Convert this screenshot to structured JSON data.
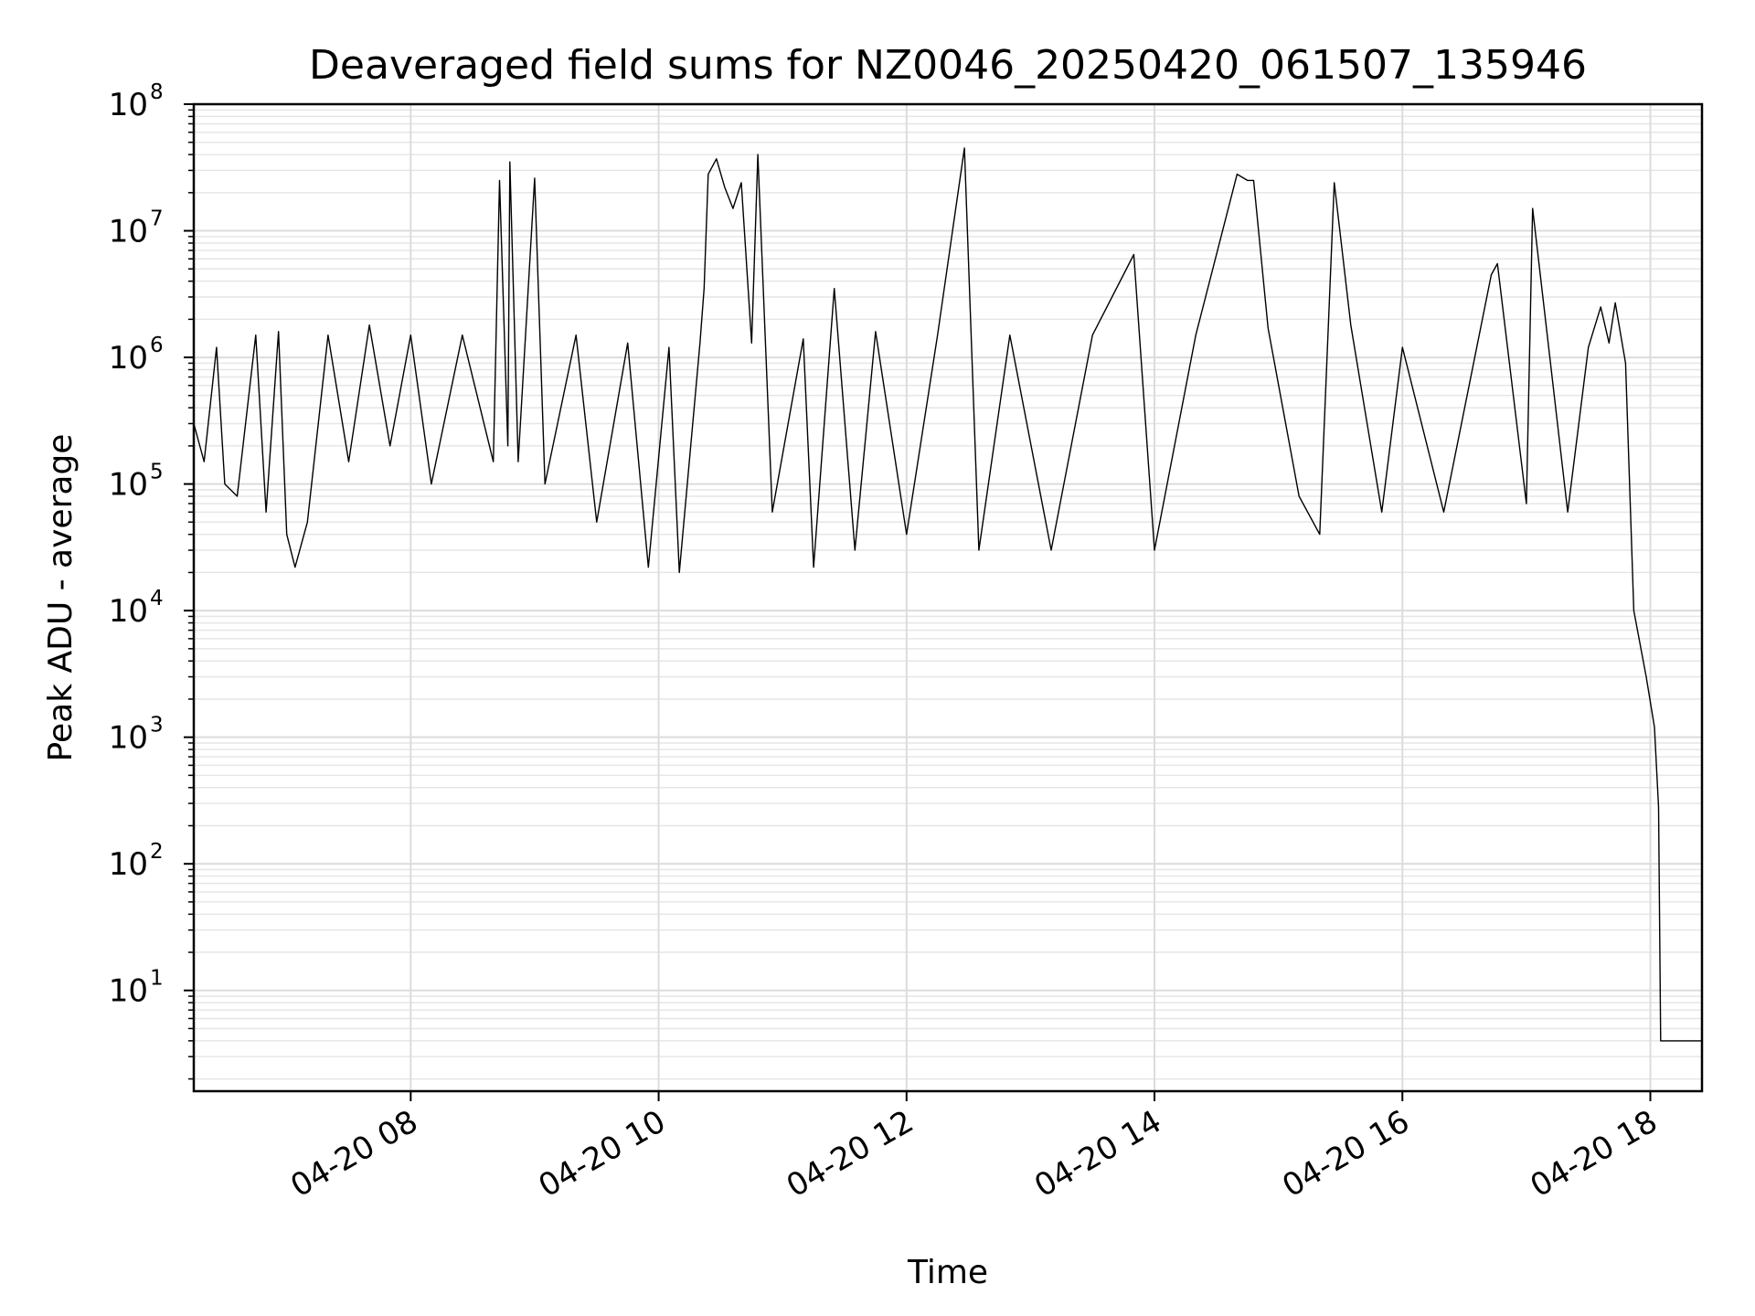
{
  "chart_data": {
    "type": "line",
    "title": "Deaveraged field sums for NZ0046_20250420_061507_135946",
    "xlabel": "Time",
    "ylabel": "Peak ADU - average",
    "yscale": "log",
    "xlim": [
      "2025-04-20 06:15",
      "2025-04-20 18:25"
    ],
    "ylim": [
      1.6,
      100000000
    ],
    "grid": "major and minor, light gray",
    "x_ticks": [
      {
        "value": "2025-04-20 08:00",
        "label": "04-20 08"
      },
      {
        "value": "2025-04-20 10:00",
        "label": "04-20 10"
      },
      {
        "value": "2025-04-20 12:00",
        "label": "04-20 12"
      },
      {
        "value": "2025-04-20 14:00",
        "label": "04-20 14"
      },
      {
        "value": "2025-04-20 16:00",
        "label": "04-20 16"
      },
      {
        "value": "2025-04-20 18:00",
        "label": "04-20 18"
      }
    ],
    "y_ticks": [
      {
        "value": 10,
        "base": "10",
        "exp": "1"
      },
      {
        "value": 100,
        "base": "10",
        "exp": "2"
      },
      {
        "value": 1000,
        "base": "10",
        "exp": "3"
      },
      {
        "value": 10000,
        "base": "10",
        "exp": "4"
      },
      {
        "value": 100000,
        "base": "10",
        "exp": "5"
      },
      {
        "value": 1000000,
        "base": "10",
        "exp": "6"
      },
      {
        "value": 10000000,
        "base": "10",
        "exp": "7"
      },
      {
        "value": 100000000,
        "base": "10",
        "exp": "8"
      }
    ],
    "series": [
      {
        "color": "#000000",
        "values_description_only_for_shape": "",
        "points": [
          [
            "2025-04-20 06:15",
            300000
          ],
          [
            "2025-04-20 06:20",
            150000
          ],
          [
            "2025-04-20 06:26",
            1200000
          ],
          [
            "2025-04-20 06:30",
            100000
          ],
          [
            "2025-04-20 06:36",
            80000
          ],
          [
            "2025-04-20 06:45",
            1500000
          ],
          [
            "2025-04-20 06:50",
            60000
          ],
          [
            "2025-04-20 06:56",
            1600000
          ],
          [
            "2025-04-20 07:00",
            40000
          ],
          [
            "2025-04-20 07:04",
            22000
          ],
          [
            "2025-04-20 07:10",
            50000
          ],
          [
            "2025-04-20 07:20",
            1500000
          ],
          [
            "2025-04-20 07:30",
            150000
          ],
          [
            "2025-04-20 07:40",
            1800000
          ],
          [
            "2025-04-20 07:50",
            200000
          ],
          [
            "2025-04-20 08:00",
            1500000
          ],
          [
            "2025-04-20 08:10",
            100000
          ],
          [
            "2025-04-20 08:25",
            1500000
          ],
          [
            "2025-04-20 08:40",
            150000
          ],
          [
            "2025-04-20 08:43",
            25000000
          ],
          [
            "2025-04-20 08:47",
            200000
          ],
          [
            "2025-04-20 08:48",
            35000000
          ],
          [
            "2025-04-20 08:52",
            150000
          ],
          [
            "2025-04-20 09:00",
            26000000
          ],
          [
            "2025-04-20 09:05",
            100000
          ],
          [
            "2025-04-20 09:20",
            1500000
          ],
          [
            "2025-04-20 09:30",
            50000
          ],
          [
            "2025-04-20 09:45",
            1300000
          ],
          [
            "2025-04-20 09:55",
            22000
          ],
          [
            "2025-04-20 10:05",
            1200000
          ],
          [
            "2025-04-20 10:10",
            20000
          ],
          [
            "2025-04-20 10:20",
            1300000
          ],
          [
            "2025-04-20 10:22",
            3500000
          ],
          [
            "2025-04-20 10:24",
            28000000
          ],
          [
            "2025-04-20 10:28",
            37000000
          ],
          [
            "2025-04-20 10:32",
            22000000
          ],
          [
            "2025-04-20 10:36",
            15000000
          ],
          [
            "2025-04-20 10:40",
            24000000
          ],
          [
            "2025-04-20 10:45",
            1300000
          ],
          [
            "2025-04-20 10:48",
            40000000
          ],
          [
            "2025-04-20 10:55",
            60000
          ],
          [
            "2025-04-20 11:10",
            1400000
          ],
          [
            "2025-04-20 11:15",
            22000
          ],
          [
            "2025-04-20 11:25",
            3500000
          ],
          [
            "2025-04-20 11:35",
            30000
          ],
          [
            "2025-04-20 11:45",
            1600000
          ],
          [
            "2025-04-20 12:00",
            40000
          ],
          [
            "2025-04-20 12:15",
            1500000
          ],
          [
            "2025-04-20 12:28",
            45000000
          ],
          [
            "2025-04-20 12:35",
            30000
          ],
          [
            "2025-04-20 12:50",
            1500000
          ],
          [
            "2025-04-20 13:10",
            30000
          ],
          [
            "2025-04-20 13:30",
            1500000
          ],
          [
            "2025-04-20 13:50",
            6500000
          ],
          [
            "2025-04-20 14:00",
            30000
          ],
          [
            "2025-04-20 14:20",
            1500000
          ],
          [
            "2025-04-20 14:40",
            28000000
          ],
          [
            "2025-04-20 14:45",
            25000000
          ],
          [
            "2025-04-20 14:48",
            25000000
          ],
          [
            "2025-04-20 14:55",
            1700000
          ],
          [
            "2025-04-20 15:10",
            80000
          ],
          [
            "2025-04-20 15:20",
            40000
          ],
          [
            "2025-04-20 15:27",
            24000000
          ],
          [
            "2025-04-20 15:35",
            1800000
          ],
          [
            "2025-04-20 15:50",
            60000
          ],
          [
            "2025-04-20 16:00",
            1200000
          ],
          [
            "2025-04-20 16:20",
            60000
          ],
          [
            "2025-04-20 16:43",
            4500000
          ],
          [
            "2025-04-20 16:46",
            5500000
          ],
          [
            "2025-04-20 17:00",
            70000
          ],
          [
            "2025-04-20 17:03",
            15000000
          ],
          [
            "2025-04-20 17:20",
            60000
          ],
          [
            "2025-04-20 17:30",
            1200000
          ],
          [
            "2025-04-20 17:36",
            2500000
          ],
          [
            "2025-04-20 17:40",
            1300000
          ],
          [
            "2025-04-20 17:43",
            2700000
          ],
          [
            "2025-04-20 17:48",
            900000
          ],
          [
            "2025-04-20 17:52",
            10000
          ],
          [
            "2025-04-20 17:58",
            3000
          ],
          [
            "2025-04-20 18:02",
            1200
          ],
          [
            "2025-04-20 18:04",
            280
          ],
          [
            "2025-04-20 18:05",
            4
          ],
          [
            "2025-04-20 18:25",
            4
          ]
        ]
      }
    ]
  }
}
